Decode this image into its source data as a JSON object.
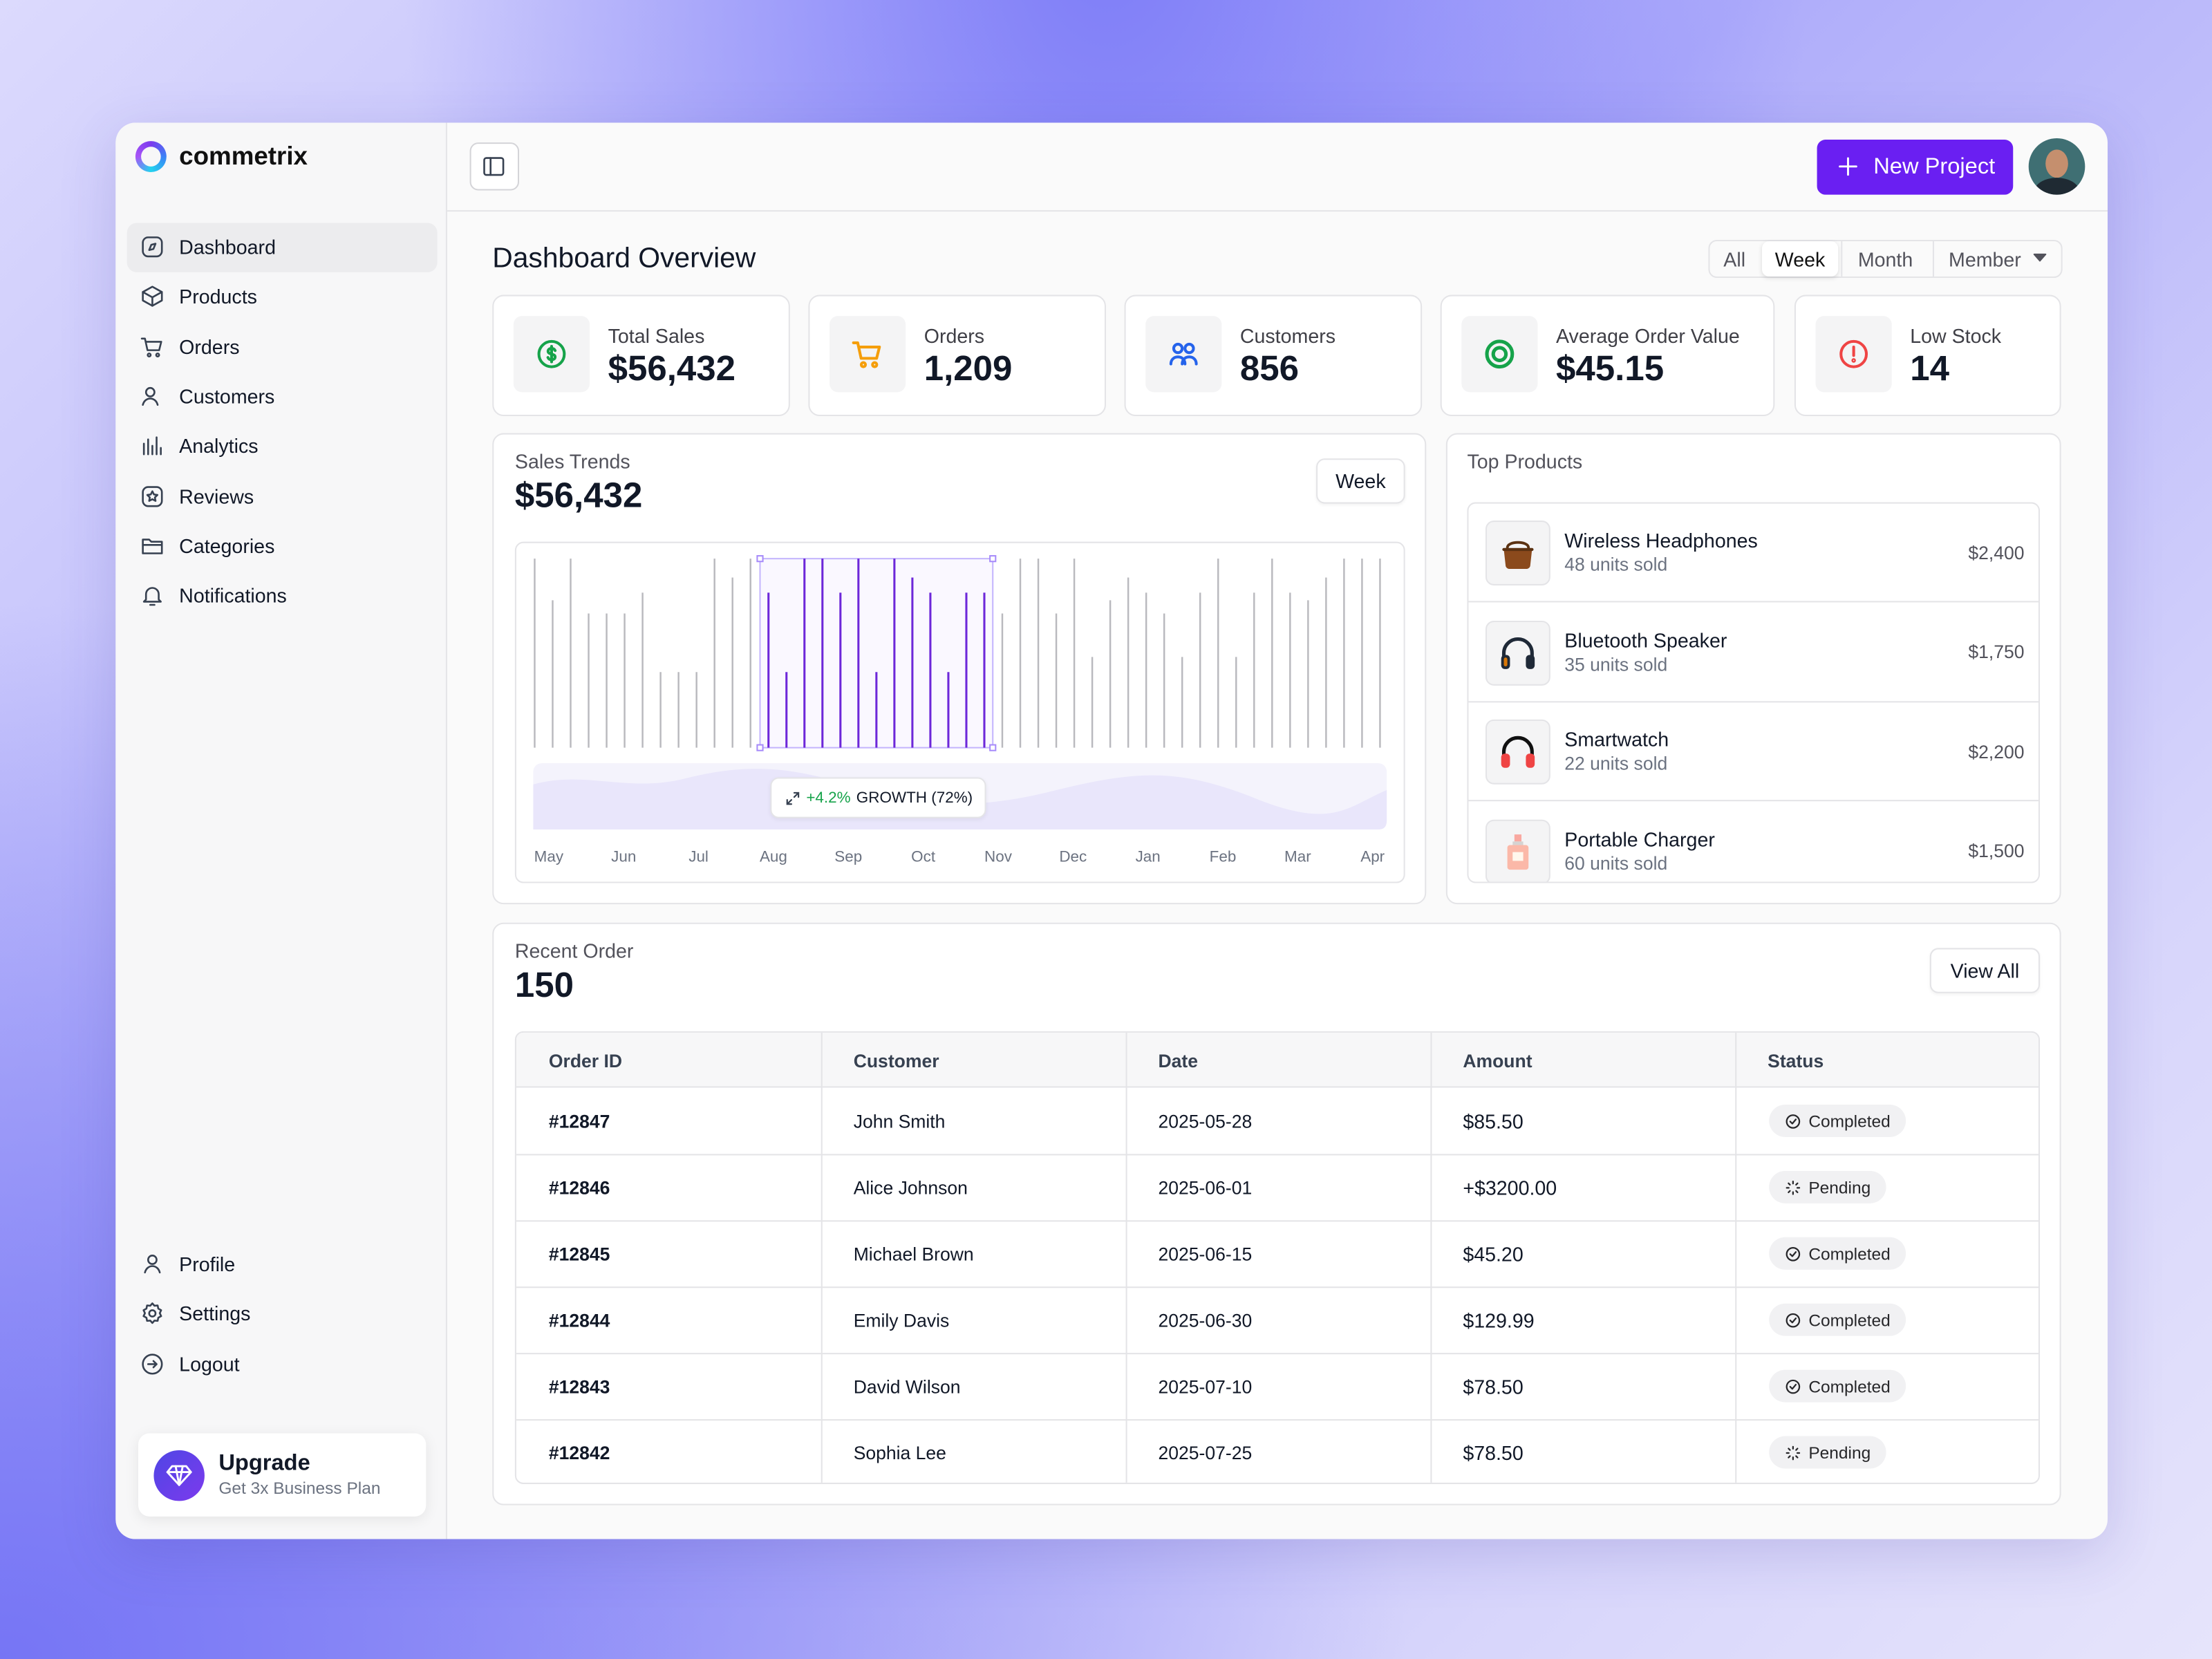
{
  "brand": "commetrix",
  "nav": [
    "Dashboard",
    "Products",
    "Orders",
    "Customers",
    "Analytics",
    "Reviews",
    "Categories",
    "Notifications"
  ],
  "nav_bottom": [
    "Profile",
    "Settings",
    "Logout"
  ],
  "upgrade": {
    "title": "Upgrade",
    "subtitle": "Get 3x Business Plan"
  },
  "header": {
    "button": "New Project"
  },
  "page_title": "Dashboard Overview",
  "filters": [
    "All",
    "Week",
    "Month",
    "Member"
  ],
  "stats": [
    {
      "label": "Total Sales",
      "value": "$56,432"
    },
    {
      "label": "Orders",
      "value": "1,209"
    },
    {
      "label": "Customers",
      "value": "856"
    },
    {
      "label": "Average Order Value",
      "value": "$45.15"
    },
    {
      "label": "Low Stock",
      "value": "14"
    }
  ],
  "sales_trends": {
    "title": "Sales Trends",
    "total": "$56,432",
    "period": "Week",
    "growth": "+4.2%",
    "growth_label": "GROWTH (72%)",
    "months": [
      "May",
      "Jun",
      "Jul",
      "Aug",
      "Sep",
      "Oct",
      "Nov",
      "Dec",
      "Jan",
      "Feb",
      "Mar",
      "Apr"
    ],
    "ylim": [
      0,
      100
    ],
    "highlight": {
      "from": 13,
      "to": 25
    },
    "bars": [
      100,
      78,
      100,
      71,
      71,
      71,
      82,
      40,
      40,
      40,
      100,
      90,
      100,
      82,
      40,
      100,
      100,
      82,
      100,
      40,
      100,
      90,
      82,
      40,
      82,
      82,
      71,
      100,
      100,
      71,
      100,
      48,
      78,
      90,
      82,
      71,
      48,
      82,
      100,
      48,
      82,
      100,
      82,
      78,
      90,
      100,
      100,
      100
    ]
  },
  "top_products": {
    "title": "Top Products",
    "items": [
      {
        "name": "Wireless Headphones",
        "sold": "48 units sold",
        "price": "$2,400"
      },
      {
        "name": "Bluetooth Speaker",
        "sold": "35 units sold",
        "price": "$1,750"
      },
      {
        "name": "Smartwatch",
        "sold": "22 units sold",
        "price": "$2,200"
      },
      {
        "name": "Portable Charger",
        "sold": "60 units sold",
        "price": "$1,500"
      }
    ]
  },
  "recent_orders": {
    "title": "Recent Order",
    "count": 150,
    "button": "View All",
    "columns": [
      "Order ID",
      "Customer",
      "Date",
      "Amount",
      "Status"
    ],
    "rows": [
      [
        "#12847",
        "John Smith",
        "2025-05-28",
        "$85.50",
        "Completed"
      ],
      [
        "#12846",
        "Alice Johnson",
        "2025-06-01",
        "+$3200.00",
        "Pending"
      ],
      [
        "#12845",
        "Michael Brown",
        "2025-06-15",
        "$45.20",
        "Completed"
      ],
      [
        "#12844",
        "Emily Davis",
        "2025-06-30",
        "$129.99",
        "Completed"
      ],
      [
        "#12843",
        "David Wilson",
        "2025-07-10",
        "$78.50",
        "Completed"
      ],
      [
        "#12842",
        "Sophia Lee",
        "2025-07-25",
        "$78.50",
        "Pending"
      ]
    ]
  }
}
